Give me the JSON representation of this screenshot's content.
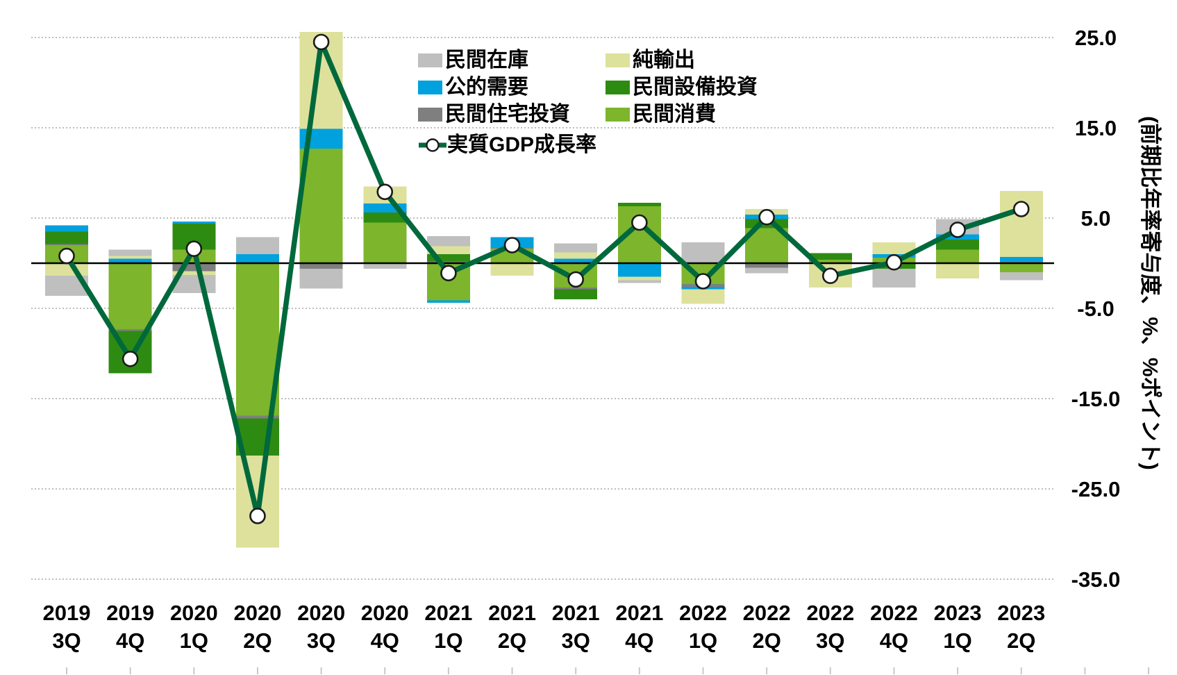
{
  "chart_data": {
    "type": "bar",
    "subtype": "stacked-bar-with-line",
    "title": "",
    "ylabel_right": "(前期比年率寄与度、%、%ポイント)",
    "categories": [
      "2019 3Q",
      "2019 4Q",
      "2020 1Q",
      "2020 2Q",
      "2020 3Q",
      "2020 4Q",
      "2021 1Q",
      "2021 2Q",
      "2021 3Q",
      "2021 4Q",
      "2022 1Q",
      "2022 2Q",
      "2022 3Q",
      "2022 4Q",
      "2023 1Q",
      "2023 2Q"
    ],
    "series": [
      {
        "name": "民間消費",
        "color": "#7db52d",
        "values": [
          2.0,
          -7.3,
          1.5,
          -16.9,
          12.7,
          4.5,
          -4.1,
          1.6,
          -2.7,
          6.3,
          -2.3,
          3.9,
          0.4,
          0.6,
          1.5,
          -1.0
        ]
      },
      {
        "name": "民間住宅投資",
        "color": "#7f7f7f",
        "values": [
          0.1,
          -0.2,
          -0.9,
          -0.3,
          -0.6,
          0,
          0.2,
          0.1,
          -0.2,
          0,
          -0.3,
          -0.5,
          0,
          0,
          0,
          0.2
        ]
      },
      {
        "name": "民間設備投資",
        "color": "#2e8b12",
        "values": [
          1.4,
          -4.7,
          2.9,
          -4.1,
          0,
          1.1,
          0.8,
          0,
          -1.1,
          0.4,
          0,
          1.0,
          0.7,
          -0.6,
          1.1,
          0
        ]
      },
      {
        "name": "公的需要",
        "color": "#00a1dd",
        "values": [
          0.7,
          0.5,
          0.2,
          1.0,
          2.2,
          1.0,
          -0.3,
          1.2,
          0.5,
          -1.5,
          -0.3,
          0.5,
          0,
          0.4,
          0.6,
          0.5
        ]
      },
      {
        "name": "純輸出",
        "color": "#dde19c",
        "values": [
          -1.4,
          0.3,
          -0.4,
          -10.2,
          10.7,
          1.9,
          0.9,
          -1.4,
          0.7,
          -0.4,
          -1.6,
          0.6,
          -2.7,
          1.3,
          -1.7,
          7.3
        ]
      },
      {
        "name": "民間在庫",
        "color": "#bfbfbf",
        "values": [
          -2.2,
          0.7,
          -2.0,
          1.9,
          -2.2,
          -0.6,
          1.1,
          0,
          1.0,
          -0.3,
          2.3,
          -0.6,
          0,
          -2.1,
          1.7,
          -0.9
        ]
      }
    ],
    "line_series": {
      "name": "実質GDP成長率",
      "color": "#00693c",
      "marker_fill": "#ffffff",
      "marker_stroke": "#1a1a1a",
      "values": [
        0.8,
        -10.6,
        1.6,
        -28.0,
        24.5,
        7.9,
        -1.1,
        2.0,
        -1.8,
        4.5,
        -2.0,
        5.1,
        -1.4,
        0.1,
        3.7,
        6.0
      ]
    },
    "y_ticks": [
      25,
      15,
      5,
      -5,
      -15,
      -25,
      -35
    ],
    "y_tick_labels": [
      "25.0",
      "15.0",
      "5.0",
      "-5.0",
      "-15.0",
      "-25.0",
      "-35.0"
    ],
    "ylim": [
      -35.0,
      25.6
    ],
    "grid": "dotted-horizontal",
    "zero_line": true,
    "legend_position": "top-center",
    "legend_rows": [
      [
        "民間在庫",
        "純輸出"
      ],
      [
        "公的需要",
        "民間設備投資"
      ],
      [
        "民間住宅投資",
        "民間消費"
      ],
      [
        "実質GDP成長率"
      ]
    ],
    "colors": {
      "grid": "#a6a6a6",
      "zero_line": "#000000",
      "tick": "#c8c8c8",
      "text": "#000000"
    }
  }
}
